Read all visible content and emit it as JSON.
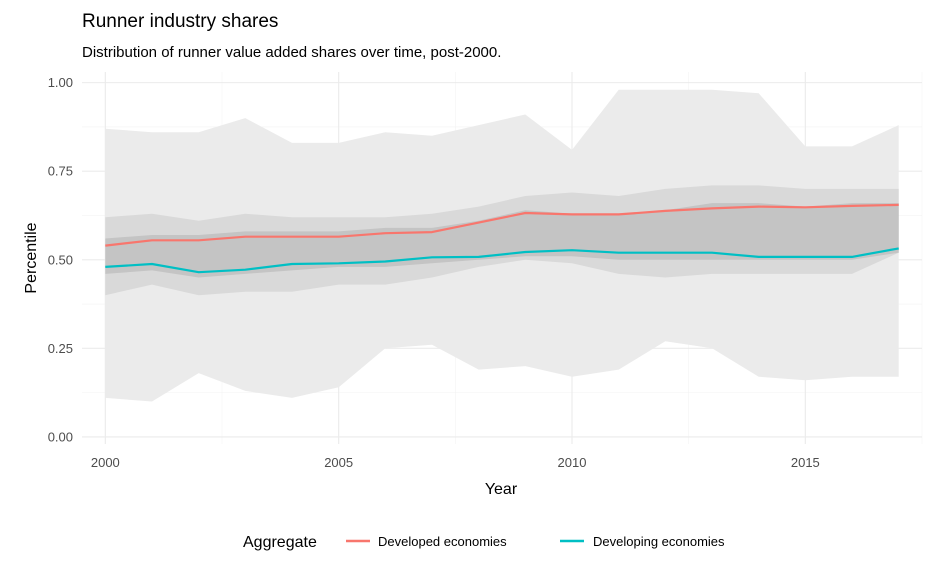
{
  "chart_data": {
    "type": "line",
    "title": "Runner industry shares",
    "subtitle": "Distribution of runner value added shares over time, post-2000.",
    "xlabel": "Year",
    "ylabel": "Percentile",
    "xlim": [
      1999.5,
      2017.5
    ],
    "ylim": [
      -0.02,
      1.03
    ],
    "x_ticks": [
      "2000",
      "2005",
      "2010",
      "2015"
    ],
    "y_ticks": [
      "0.00",
      "0.25",
      "0.50",
      "0.75",
      "1.00"
    ],
    "grid": true,
    "legend_position": "bottom",
    "legend_title": "Aggregate",
    "x": [
      2000,
      2001,
      2002,
      2003,
      2004,
      2005,
      2006,
      2007,
      2008,
      2009,
      2010,
      2011,
      2012,
      2013,
      2014,
      2015,
      2016,
      2017
    ],
    "bands": [
      {
        "color": "#ebebeb",
        "lower": [
          0.11,
          0.1,
          0.18,
          0.13,
          0.11,
          0.14,
          0.25,
          0.26,
          0.19,
          0.2,
          0.17,
          0.19,
          0.27,
          0.25,
          0.17,
          0.16,
          0.17,
          0.17
        ],
        "upper": [
          0.87,
          0.86,
          0.86,
          0.9,
          0.83,
          0.83,
          0.86,
          0.85,
          0.88,
          0.91,
          0.81,
          0.98,
          0.98,
          0.98,
          0.97,
          0.82,
          0.82,
          0.88
        ]
      },
      {
        "color": "#d9d9d9",
        "lower": [
          0.4,
          0.43,
          0.4,
          0.41,
          0.41,
          0.43,
          0.43,
          0.45,
          0.48,
          0.5,
          0.49,
          0.46,
          0.45,
          0.46,
          0.46,
          0.46,
          0.46,
          0.52
        ],
        "upper": [
          0.62,
          0.63,
          0.61,
          0.63,
          0.62,
          0.62,
          0.62,
          0.63,
          0.65,
          0.68,
          0.69,
          0.68,
          0.7,
          0.71,
          0.71,
          0.7,
          0.7,
          0.7
        ]
      },
      {
        "color": "#c4c4c4",
        "lower": [
          0.46,
          0.47,
          0.45,
          0.46,
          0.47,
          0.48,
          0.48,
          0.49,
          0.5,
          0.51,
          0.51,
          0.5,
          0.5,
          0.5,
          0.5,
          0.5,
          0.5,
          0.52
        ],
        "upper": [
          0.56,
          0.57,
          0.57,
          0.58,
          0.58,
          0.58,
          0.59,
          0.59,
          0.61,
          0.64,
          0.63,
          0.63,
          0.64,
          0.66,
          0.66,
          0.65,
          0.66,
          0.66
        ]
      }
    ],
    "series": [
      {
        "name": "Developed economies",
        "color": "#f8766d",
        "values": [
          0.54,
          0.555,
          0.555,
          0.565,
          0.565,
          0.565,
          0.575,
          0.578,
          0.605,
          0.632,
          0.628,
          0.628,
          0.638,
          0.645,
          0.65,
          0.648,
          0.652,
          0.655
        ]
      },
      {
        "name": "Developing economies",
        "color": "#00bfc4",
        "values": [
          0.48,
          0.488,
          0.465,
          0.472,
          0.488,
          0.49,
          0.495,
          0.507,
          0.508,
          0.522,
          0.527,
          0.52,
          0.52,
          0.52,
          0.508,
          0.508,
          0.508,
          0.532
        ]
      }
    ]
  }
}
